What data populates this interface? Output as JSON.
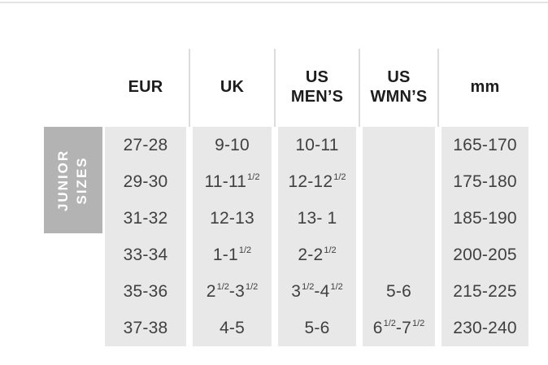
{
  "colors": {
    "top-border": "#e4e4e4",
    "separator": "#dcdcdc",
    "cell-bg": "#e8e8e8",
    "group-bg": "#b3b3b3",
    "group-text": "#ffffff",
    "header-text": "#1d1d1d",
    "body-text": "#404040"
  },
  "chart_data": {
    "type": "table",
    "group_label": "JUNIOR\nSIZES",
    "columns": [
      {
        "label": "EUR"
      },
      {
        "label": "UK"
      },
      {
        "label": "US\nMEN’S"
      },
      {
        "label": "US\nWMN’S"
      },
      {
        "label": "mm"
      }
    ],
    "rows": [
      {
        "eur": "27-28",
        "uk": "9-10",
        "us_mens": "10-11",
        "us_wmns": "",
        "mm": "165-170"
      },
      {
        "eur": "29-30",
        "uk": "11-11½",
        "us_mens": "12-12½",
        "us_wmns": "",
        "mm": "175-180"
      },
      {
        "eur": "31-32",
        "uk": "12-13",
        "us_mens": "13- 1",
        "us_wmns": "",
        "mm": "185-190"
      },
      {
        "eur": "33-34",
        "uk": "1-1½",
        "us_mens": "2-2½",
        "us_wmns": "",
        "mm": "200-205"
      },
      {
        "eur": "35-36",
        "uk": "2½-3½",
        "us_mens": "3½-4½",
        "us_wmns": "5-6",
        "mm": "215-225"
      },
      {
        "eur": "37-38",
        "uk": "4-5",
        "us_mens": "5-6",
        "us_wmns": "6½-7½",
        "mm": "230-240"
      }
    ]
  }
}
